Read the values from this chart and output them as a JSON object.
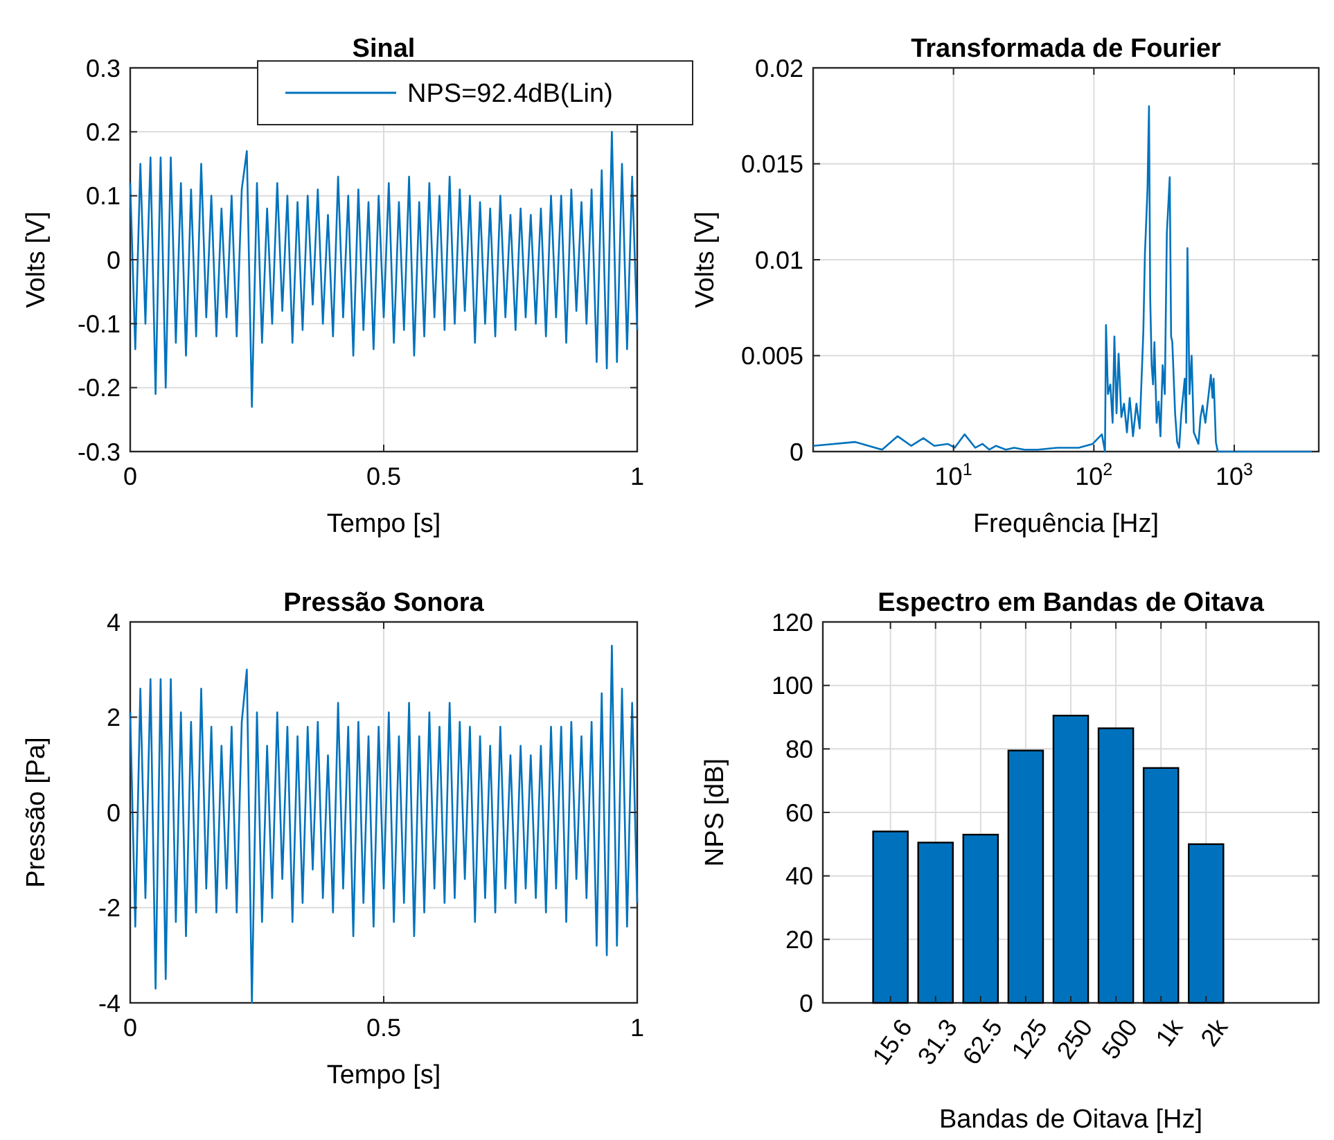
{
  "chart_data": [
    {
      "type": "line",
      "title": "Sinal",
      "xlabel": "Tempo [s]",
      "ylabel": "Volts [V]",
      "xlim": [
        0,
        1
      ],
      "xticks": [
        0,
        0.5,
        1
      ],
      "ylim": [
        -0.3,
        0.3
      ],
      "yticks": [
        -0.3,
        -0.2,
        -0.1,
        0,
        0.1,
        0.2,
        0.3
      ],
      "grid": true,
      "legend": "top right",
      "x": [
        0,
        0.01,
        0.02,
        0.03,
        0.04,
        0.05,
        0.06,
        0.07,
        0.08,
        0.09,
        0.1,
        0.11,
        0.12,
        0.13,
        0.14,
        0.15,
        0.16,
        0.17,
        0.18,
        0.19,
        0.2,
        0.21,
        0.22,
        0.23,
        0.24,
        0.25,
        0.26,
        0.27,
        0.28,
        0.29,
        0.3,
        0.31,
        0.32,
        0.33,
        0.34,
        0.35,
        0.36,
        0.37,
        0.38,
        0.39,
        0.4,
        0.41,
        0.42,
        0.43,
        0.44,
        0.45,
        0.46,
        0.47,
        0.48,
        0.49,
        0.5,
        0.51,
        0.52,
        0.53,
        0.54,
        0.55,
        0.56,
        0.57,
        0.58,
        0.59,
        0.6,
        0.61,
        0.62,
        0.63,
        0.64,
        0.65,
        0.66,
        0.67,
        0.68,
        0.69,
        0.7,
        0.71,
        0.72,
        0.73,
        0.74,
        0.75,
        0.76,
        0.77,
        0.78,
        0.79,
        0.8,
        0.81,
        0.82,
        0.83,
        0.84,
        0.85,
        0.86,
        0.87,
        0.88,
        0.89,
        0.9,
        0.91,
        0.92,
        0.93,
        0.94,
        0.95,
        0.96,
        0.97,
        0.98,
        0.99,
        1
      ],
      "series": [
        {
          "name": "NPS=92.4dB(Lin)",
          "color": "#0072bd",
          "values": [
            0.12,
            -0.14,
            0.15,
            -0.1,
            0.16,
            -0.21,
            0.16,
            -0.2,
            0.16,
            -0.13,
            0.12,
            -0.15,
            0.11,
            -0.12,
            0.15,
            -0.09,
            0.1,
            -0.12,
            0.08,
            -0.09,
            0.1,
            -0.12,
            0.11,
            0.17,
            -0.23,
            0.12,
            -0.13,
            0.08,
            -0.1,
            0.12,
            -0.08,
            0.1,
            -0.13,
            0.09,
            -0.11,
            0.1,
            -0.07,
            0.11,
            -0.1,
            0.07,
            -0.12,
            0.13,
            -0.09,
            0.1,
            -0.15,
            0.11,
            -0.11,
            0.09,
            -0.14,
            0.1,
            -0.09,
            0.12,
            -0.13,
            0.09,
            -0.11,
            0.13,
            -0.15,
            0.09,
            -0.12,
            0.12,
            -0.09,
            0.1,
            -0.11,
            0.13,
            -0.1,
            0.11,
            -0.08,
            0.1,
            -0.13,
            0.09,
            -0.1,
            0.08,
            -0.12,
            0.1,
            -0.09,
            0.07,
            -0.11,
            0.08,
            -0.09,
            0.07,
            -0.1,
            0.08,
            -0.12,
            0.1,
            -0.09,
            0.1,
            -0.13,
            0.11,
            -0.08,
            0.09,
            -0.1,
            0.11,
            -0.16,
            0.14,
            -0.17,
            0.2,
            -0.16,
            0.15,
            -0.14,
            0.13,
            -0.11
          ]
        }
      ]
    },
    {
      "type": "line",
      "title": "Transformada de Fourier",
      "xlabel": "Frequência [Hz]",
      "ylabel": "Volts [V]",
      "log": "x",
      "xlim": [
        1,
        4000
      ],
      "xticks": [
        {
          "value": 10,
          "label": "10$^{1}$"
        },
        {
          "value": 100,
          "label": "10$^{2}$"
        },
        {
          "value": 1000,
          "label": "10$^{3}$"
        }
      ],
      "ylim": [
        0,
        0.02
      ],
      "yticks": [
        0,
        0.005,
        0.01,
        0.015,
        0.02
      ],
      "grid": true,
      "x": [
        1,
        2,
        3.1,
        4,
        5,
        6.1,
        7.3,
        9.1,
        10.2,
        12,
        14.3,
        16.1,
        18,
        20.1,
        23.6,
        27,
        32,
        40,
        55,
        78,
        98,
        114,
        120,
        122,
        126,
        131,
        136,
        140,
        145,
        150,
        157,
        164,
        172,
        180,
        190,
        201,
        212,
        225,
        231,
        241,
        247,
        252,
        258,
        264,
        270,
        280,
        289,
        298,
        309,
        320,
        331,
        347,
        355,
        362,
        379,
        392,
        405,
        420,
        444,
        454,
        464,
        480,
        497,
        515,
        556,
        575,
        595,
        623,
        681,
        700,
        713,
        740,
        763,
        835,
        3600
      ],
      "series": [
        {
          "color": "#0072bd",
          "values": [
            0.0003,
            0.0005,
            0.0001,
            0.0008,
            0.0003,
            0.0007,
            0.0003,
            0.0004,
            0.0002,
            0.0009,
            0.0002,
            0.0004,
            0.0001,
            0.0003,
            0.0001,
            0.0002,
            0.0001,
            0.0001,
            0.0002,
            0.0002,
            0.0004,
            0.0009,
            0,
            0.0066,
            0.003,
            0.0035,
            0.0015,
            0.006,
            0.002,
            0.0051,
            0.0018,
            0.0025,
            0.001,
            0.0028,
            0.0008,
            0.0025,
            0.0012,
            0.0062,
            0.0103,
            0.0137,
            0.018,
            0.008,
            0.0045,
            0.0035,
            0.0057,
            0.0015,
            0.0026,
            0.0008,
            0.0045,
            0.003,
            0.0114,
            0.0143,
            0.006,
            0.0057,
            0.002,
            0.0005,
            0.0002,
            0.002,
            0.0038,
            0.0015,
            0.0106,
            0.003,
            0.005,
            0.001,
            0.0004,
            0.0018,
            0.0024,
            0.0015,
            0.004,
            0.0028,
            0.0038,
            0.0005,
            0,
            0,
            0
          ]
        }
      ]
    },
    {
      "type": "line",
      "title": "Pressão Sonora",
      "xlabel": "Tempo [s]",
      "ylabel": "Pressão [Pa]",
      "xlim": [
        0,
        1
      ],
      "xticks": [
        0,
        0.5,
        1
      ],
      "ylim": [
        -4,
        4
      ],
      "yticks": [
        -4,
        -2,
        0,
        2,
        4
      ],
      "grid": true,
      "x": [
        0,
        0.01,
        0.02,
        0.03,
        0.04,
        0.05,
        0.06,
        0.07,
        0.08,
        0.09,
        0.1,
        0.11,
        0.12,
        0.13,
        0.14,
        0.15,
        0.16,
        0.17,
        0.18,
        0.19,
        0.2,
        0.21,
        0.22,
        0.23,
        0.24,
        0.25,
        0.26,
        0.27,
        0.28,
        0.29,
        0.3,
        0.31,
        0.32,
        0.33,
        0.34,
        0.35,
        0.36,
        0.37,
        0.38,
        0.39,
        0.4,
        0.41,
        0.42,
        0.43,
        0.44,
        0.45,
        0.46,
        0.47,
        0.48,
        0.49,
        0.5,
        0.51,
        0.52,
        0.53,
        0.54,
        0.55,
        0.56,
        0.57,
        0.58,
        0.59,
        0.6,
        0.61,
        0.62,
        0.63,
        0.64,
        0.65,
        0.66,
        0.67,
        0.68,
        0.69,
        0.7,
        0.71,
        0.72,
        0.73,
        0.74,
        0.75,
        0.76,
        0.77,
        0.78,
        0.79,
        0.8,
        0.81,
        0.82,
        0.83,
        0.84,
        0.85,
        0.86,
        0.87,
        0.88,
        0.89,
        0.9,
        0.91,
        0.92,
        0.93,
        0.94,
        0.95,
        0.96,
        0.97,
        0.98,
        0.99,
        1
      ],
      "series": [
        {
          "color": "#0072bd",
          "values": [
            2.1,
            -2.4,
            2.6,
            -1.8,
            2.8,
            -3.7,
            2.8,
            -3.5,
            2.8,
            -2.3,
            2.1,
            -2.6,
            1.9,
            -2.1,
            2.6,
            -1.6,
            1.8,
            -2.1,
            1.4,
            -1.6,
            1.8,
            -2.1,
            1.9,
            3.0,
            -4.0,
            2.1,
            -2.3,
            1.4,
            -1.8,
            2.1,
            -1.4,
            1.8,
            -2.3,
            1.6,
            -1.9,
            1.8,
            -1.2,
            1.9,
            -1.8,
            1.2,
            -2.1,
            2.3,
            -1.6,
            1.8,
            -2.6,
            1.9,
            -1.9,
            1.6,
            -2.4,
            1.8,
            -1.6,
            2.1,
            -2.3,
            1.6,
            -1.9,
            2.3,
            -2.6,
            1.6,
            -2.1,
            2.1,
            -1.6,
            1.8,
            -1.9,
            2.3,
            -1.8,
            1.9,
            -1.4,
            1.8,
            -2.3,
            1.6,
            -1.8,
            1.4,
            -2.1,
            1.8,
            -1.6,
            1.2,
            -1.9,
            1.4,
            -1.6,
            1.2,
            -1.8,
            1.4,
            -2.1,
            1.8,
            -1.6,
            1.8,
            -2.3,
            1.9,
            -1.4,
            1.6,
            -1.8,
            1.9,
            -2.8,
            2.5,
            -3.0,
            3.5,
            -2.8,
            2.6,
            -2.4,
            2.3,
            -1.9
          ]
        }
      ]
    },
    {
      "type": "bar",
      "title": "Espectro em Bandas de Oitava",
      "xlabel": "Bandas de Oitava [Hz]",
      "ylabel": "NPS [dB]",
      "ylim": [
        0,
        120
      ],
      "yticks": [
        0,
        20,
        40,
        60,
        80,
        100,
        120
      ],
      "grid": true,
      "categories": [
        null,
        "15.6",
        "31.3",
        "62.5",
        "125",
        "250",
        "500",
        "1k",
        "2k",
        null,
        null
      ],
      "series": [
        {
          "color": "#0072bd",
          "values": [
            null,
            54,
            50.5,
            53,
            79.5,
            90.5,
            86.5,
            74,
            50,
            null,
            null
          ]
        }
      ]
    }
  ]
}
